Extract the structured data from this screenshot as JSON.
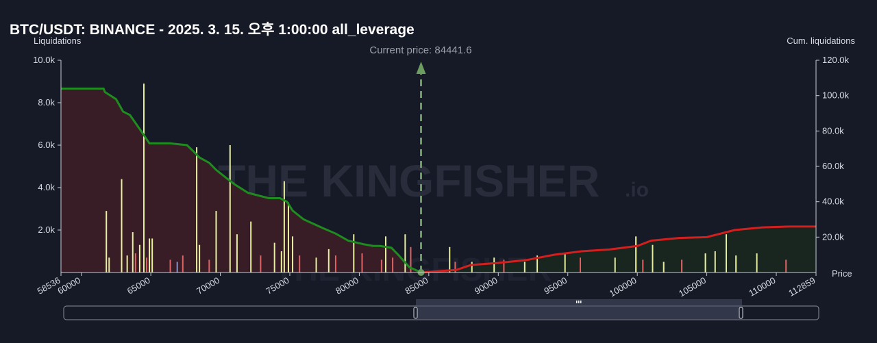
{
  "header": {
    "title": "BTC/USDT: BINANCE - 2025. 3. 15. 오후 1:00:00 all_leverage"
  },
  "annotation": {
    "current_price_label": "Current price: 84441.6"
  },
  "watermark": {
    "brand": "THE KINGFISHER",
    "suffix": ".io"
  },
  "colors": {
    "background": "#161a26",
    "long_fill": "#3a1d26",
    "short_fill": "#18271f",
    "long_line": "#1f8c1f",
    "short_line": "#d41f1f",
    "bar_yellow": "#e8f0a0",
    "bar_red": "#e06262",
    "bar_blue": "#8a90c8",
    "marker": "#6c9c5f"
  },
  "chart_data": {
    "type": "bar",
    "xlabel": "Price",
    "ylabel_left": "Liquidations",
    "ylabel_right": "Cum. liquidations",
    "xlim": [
      58536,
      112859
    ],
    "ylim_left": [
      0,
      10000
    ],
    "ylim_right": [
      0,
      120000
    ],
    "x_ticks": [
      "58536",
      "60000",
      "65000",
      "70000",
      "75000",
      "80000",
      "85000",
      "90000",
      "95000",
      "100000",
      "105000",
      "110000",
      "112859"
    ],
    "y_left_ticks": [
      "2.0k",
      "4.0k",
      "6.0k",
      "8.0k",
      "10.0k"
    ],
    "y_right_ticks": [
      "20.0k",
      "40.0k",
      "60.0k",
      "80.0k",
      "100.0k",
      "120.0k"
    ],
    "current_price": 84441.6,
    "grid": false,
    "bars": [
      {
        "x": 61800,
        "y": 2900,
        "color": "yellow"
      },
      {
        "x": 62000,
        "y": 700,
        "color": "yellow"
      },
      {
        "x": 62900,
        "y": 4400,
        "color": "yellow"
      },
      {
        "x": 63300,
        "y": 800,
        "color": "yellow"
      },
      {
        "x": 63700,
        "y": 1900,
        "color": "yellow"
      },
      {
        "x": 63900,
        "y": 900,
        "color": "red"
      },
      {
        "x": 64200,
        "y": 1300,
        "color": "yellow"
      },
      {
        "x": 64500,
        "y": 8900,
        "color": "yellow"
      },
      {
        "x": 64700,
        "y": 700,
        "color": "red"
      },
      {
        "x": 64900,
        "y": 1600,
        "color": "yellow"
      },
      {
        "x": 65100,
        "y": 1600,
        "color": "yellow"
      },
      {
        "x": 66400,
        "y": 600,
        "color": "red"
      },
      {
        "x": 66900,
        "y": 500,
        "color": "blue"
      },
      {
        "x": 67300,
        "y": 800,
        "color": "red"
      },
      {
        "x": 68300,
        "y": 5900,
        "color": "yellow"
      },
      {
        "x": 68500,
        "y": 1300,
        "color": "yellow"
      },
      {
        "x": 69200,
        "y": 600,
        "color": "red"
      },
      {
        "x": 69700,
        "y": 2900,
        "color": "yellow"
      },
      {
        "x": 70700,
        "y": 6000,
        "color": "yellow"
      },
      {
        "x": 71200,
        "y": 1800,
        "color": "yellow"
      },
      {
        "x": 72200,
        "y": 2400,
        "color": "yellow"
      },
      {
        "x": 72900,
        "y": 800,
        "color": "red"
      },
      {
        "x": 73900,
        "y": 1400,
        "color": "yellow"
      },
      {
        "x": 74400,
        "y": 1000,
        "color": "yellow"
      },
      {
        "x": 74600,
        "y": 4300,
        "color": "yellow"
      },
      {
        "x": 74900,
        "y": 3300,
        "color": "yellow"
      },
      {
        "x": 75200,
        "y": 1700,
        "color": "yellow"
      },
      {
        "x": 75700,
        "y": 800,
        "color": "red"
      },
      {
        "x": 76900,
        "y": 700,
        "color": "yellow"
      },
      {
        "x": 77800,
        "y": 1100,
        "color": "yellow"
      },
      {
        "x": 78300,
        "y": 800,
        "color": "red"
      },
      {
        "x": 79600,
        "y": 1800,
        "color": "yellow"
      },
      {
        "x": 80200,
        "y": 900,
        "color": "red"
      },
      {
        "x": 81600,
        "y": 600,
        "color": "red"
      },
      {
        "x": 81900,
        "y": 1700,
        "color": "yellow"
      },
      {
        "x": 82400,
        "y": 700,
        "color": "red"
      },
      {
        "x": 83300,
        "y": 1800,
        "color": "yellow"
      },
      {
        "x": 83700,
        "y": 1200,
        "color": "red"
      },
      {
        "x": 86500,
        "y": 1200,
        "color": "yellow"
      },
      {
        "x": 86900,
        "y": 500,
        "color": "red"
      },
      {
        "x": 88100,
        "y": 500,
        "color": "yellow"
      },
      {
        "x": 89700,
        "y": 700,
        "color": "yellow"
      },
      {
        "x": 90400,
        "y": 600,
        "color": "red"
      },
      {
        "x": 91900,
        "y": 500,
        "color": "yellow"
      },
      {
        "x": 92800,
        "y": 800,
        "color": "yellow"
      },
      {
        "x": 94800,
        "y": 900,
        "color": "yellow"
      },
      {
        "x": 95900,
        "y": 700,
        "color": "red"
      },
      {
        "x": 98400,
        "y": 700,
        "color": "yellow"
      },
      {
        "x": 99900,
        "y": 1700,
        "color": "yellow"
      },
      {
        "x": 100400,
        "y": 600,
        "color": "red"
      },
      {
        "x": 101100,
        "y": 1300,
        "color": "yellow"
      },
      {
        "x": 101900,
        "y": 500,
        "color": "yellow"
      },
      {
        "x": 103200,
        "y": 600,
        "color": "red"
      },
      {
        "x": 104900,
        "y": 900,
        "color": "yellow"
      },
      {
        "x": 105600,
        "y": 1000,
        "color": "yellow"
      },
      {
        "x": 106400,
        "y": 1800,
        "color": "yellow"
      },
      {
        "x": 107100,
        "y": 800,
        "color": "yellow"
      },
      {
        "x": 108600,
        "y": 900,
        "color": "yellow"
      },
      {
        "x": 110700,
        "y": 600,
        "color": "red"
      }
    ],
    "cumulative_long": {
      "x": [
        58536,
        61600,
        61700,
        62500,
        63000,
        63500,
        64300,
        64900,
        66400,
        67600,
        68000,
        68500,
        69200,
        69700,
        70500,
        71000,
        72000,
        73000,
        73500,
        74300,
        74800,
        75200,
        76000,
        77400,
        78300,
        79200,
        80300,
        81000,
        81500,
        82300,
        82800,
        83600,
        84441.6
      ],
      "y": [
        104000,
        104000,
        102000,
        98000,
        91000,
        89000,
        80000,
        73000,
        73000,
        72000,
        69000,
        65000,
        62000,
        58000,
        53000,
        50000,
        45000,
        43000,
        42000,
        42000,
        40000,
        35000,
        30000,
        25000,
        22000,
        18000,
        16000,
        15000,
        15000,
        14000,
        10000,
        3000,
        0
      ]
    },
    "cumulative_short": {
      "x": [
        84441.6,
        87000,
        88000,
        90000,
        92000,
        94000,
        96000,
        98000,
        100000,
        101000,
        103000,
        105000,
        107000,
        109000,
        111000,
        112859
      ],
      "y": [
        0,
        1500,
        4200,
        5400,
        7000,
        10000,
        12000,
        13000,
        15000,
        18000,
        19500,
        20000,
        24000,
        25500,
        26000,
        26000
      ]
    }
  }
}
